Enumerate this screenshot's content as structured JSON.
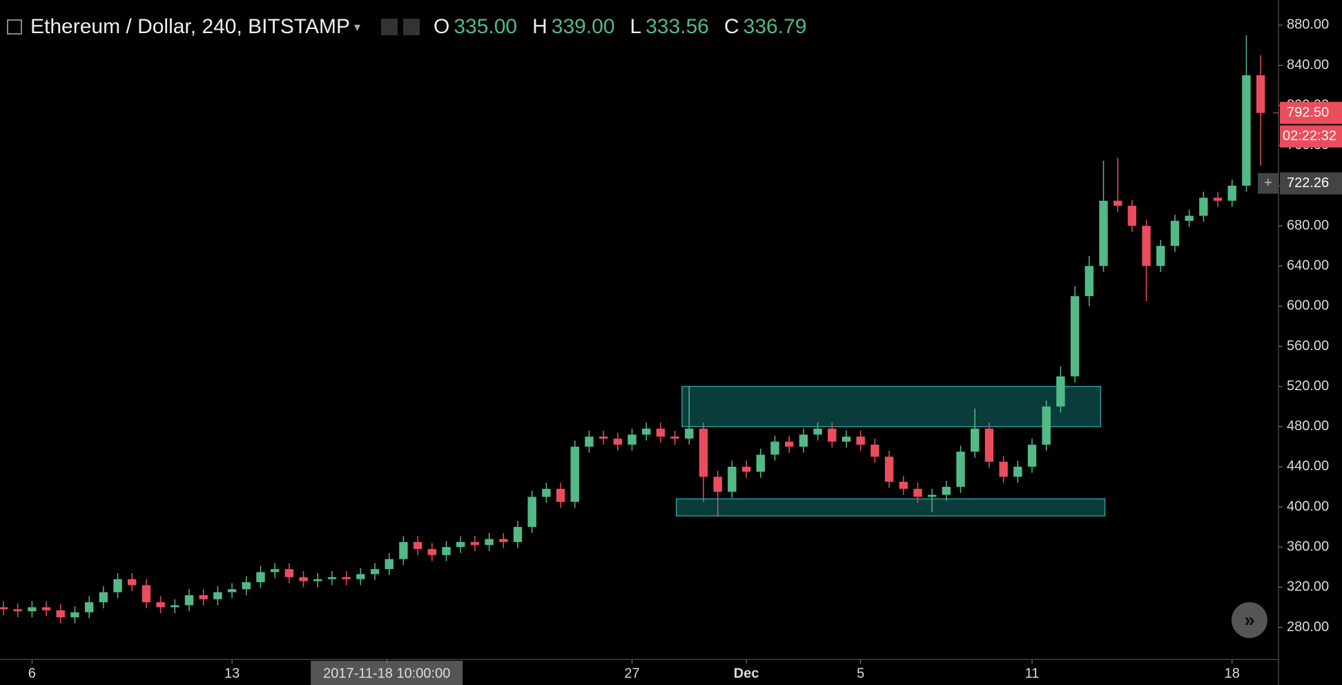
{
  "header": {
    "symbol": "Ethereum / Dollar, 240, BITSTAMP",
    "open_label": "O",
    "open": "335.00",
    "high_label": "H",
    "high": "339.00",
    "low_label": "L",
    "low": "333.56",
    "close_label": "C",
    "close": "336.79"
  },
  "chart_data": {
    "type": "candlestick",
    "x": [
      0,
      1,
      2,
      3,
      4,
      5,
      6,
      7,
      8,
      9,
      10,
      11,
      12,
      13,
      14,
      15,
      16,
      17,
      18,
      19,
      20,
      21,
      22,
      23,
      24,
      25,
      26,
      27,
      28,
      29,
      30,
      31,
      32,
      33,
      34,
      35,
      36,
      37,
      38,
      39,
      40,
      41,
      42,
      43,
      44,
      45,
      46,
      47,
      48,
      49,
      50,
      51,
      52,
      53,
      54,
      55,
      56,
      57,
      58,
      59,
      60,
      61,
      62,
      63,
      64,
      65,
      66,
      67,
      68,
      69,
      70,
      71,
      72,
      73,
      74,
      75,
      76,
      77,
      78,
      79,
      80,
      81,
      82,
      83,
      84,
      85,
      86,
      87,
      88
    ],
    "open": [
      300,
      298,
      296,
      300,
      297,
      290,
      295,
      305,
      315,
      328,
      322,
      305,
      300,
      302,
      312,
      308,
      315,
      318,
      325,
      335,
      338,
      330,
      326,
      328,
      330,
      328,
      333,
      338,
      348,
      365,
      358,
      352,
      360,
      365,
      362,
      368,
      365,
      380,
      410,
      418,
      405,
      460,
      470,
      468,
      462,
      472,
      478,
      470,
      468,
      478,
      430,
      415,
      440,
      435,
      452,
      465,
      460,
      472,
      478,
      465,
      470,
      462,
      450,
      425,
      418,
      410,
      412,
      420,
      455,
      478,
      445,
      430,
      440,
      462,
      500,
      530,
      610,
      640,
      705,
      700,
      680,
      640,
      660,
      685,
      690,
      708,
      705,
      720,
      830
    ],
    "high": [
      306,
      304,
      306,
      306,
      303,
      301,
      311,
      321,
      334,
      334,
      328,
      311,
      308,
      318,
      318,
      321,
      324,
      331,
      341,
      344,
      344,
      336,
      334,
      336,
      336,
      339,
      344,
      354,
      371,
      371,
      364,
      366,
      371,
      371,
      374,
      374,
      386,
      416,
      424,
      424,
      466,
      476,
      476,
      474,
      478,
      484,
      484,
      476,
      520,
      484,
      436,
      446,
      446,
      458,
      471,
      471,
      478,
      484,
      484,
      476,
      476,
      468,
      456,
      431,
      424,
      418,
      426,
      461,
      498,
      484,
      451,
      446,
      468,
      506,
      540,
      620,
      650,
      745,
      748,
      706,
      686,
      666,
      691,
      696,
      714,
      714,
      726,
      870,
      850
    ],
    "low": [
      292,
      290,
      290,
      291,
      284,
      284,
      289,
      299,
      309,
      316,
      299,
      294,
      294,
      296,
      302,
      302,
      309,
      312,
      319,
      329,
      324,
      320,
      320,
      322,
      322,
      322,
      327,
      332,
      342,
      352,
      346,
      346,
      354,
      356,
      356,
      359,
      359,
      374,
      404,
      399,
      399,
      454,
      462,
      456,
      456,
      466,
      464,
      462,
      462,
      405,
      390,
      409,
      429,
      429,
      446,
      454,
      454,
      466,
      459,
      459,
      456,
      444,
      419,
      412,
      404,
      395,
      406,
      414,
      449,
      439,
      424,
      424,
      434,
      456,
      494,
      524,
      600,
      634,
      694,
      674,
      605,
      634,
      654,
      679,
      684,
      699,
      699,
      714,
      740
    ],
    "close": [
      298,
      296,
      300,
      297,
      290,
      295,
      305,
      315,
      328,
      322,
      305,
      300,
      302,
      312,
      308,
      315,
      318,
      325,
      335,
      338,
      330,
      326,
      328,
      330,
      328,
      333,
      338,
      348,
      365,
      358,
      352,
      360,
      365,
      362,
      368,
      365,
      380,
      410,
      418,
      405,
      460,
      470,
      468,
      462,
      472,
      478,
      470,
      468,
      478,
      430,
      415,
      440,
      435,
      452,
      465,
      460,
      472,
      478,
      465,
      470,
      462,
      450,
      425,
      418,
      410,
      412,
      420,
      455,
      478,
      445,
      430,
      440,
      462,
      500,
      530,
      610,
      640,
      705,
      700,
      680,
      640,
      660,
      685,
      690,
      708,
      705,
      720,
      830,
      792.5
    ],
    "up_color": "#53b987",
    "down_color": "#eb4d5c",
    "xlim": [
      -0.24,
      89.25
    ],
    "xticks": [
      {
        "value": 2,
        "label": "6"
      },
      {
        "value": 16,
        "label": "13"
      },
      {
        "value": 26.83,
        "label": "2017-11-18 10:00:00"
      },
      {
        "value": 44,
        "label": "27"
      },
      {
        "value": 52,
        "label": "Dec"
      },
      {
        "value": 60,
        "label": "5"
      },
      {
        "value": 72,
        "label": "11"
      },
      {
        "value": 86,
        "label": "18"
      }
    ],
    "ylim": [
      248,
      905
    ],
    "yticks": [
      {
        "value": 280,
        "label": "280.00"
      },
      {
        "value": 320,
        "label": "320.00"
      },
      {
        "value": 360,
        "label": "360.00"
      },
      {
        "value": 400,
        "label": "400.00"
      },
      {
        "value": 440,
        "label": "440.00"
      },
      {
        "value": 480,
        "label": "480.00"
      },
      {
        "value": 520,
        "label": "520.00"
      },
      {
        "value": 560,
        "label": "560.00"
      },
      {
        "value": 600,
        "label": "600.00"
      },
      {
        "value": 640,
        "label": "640.00"
      },
      {
        "value": 680,
        "label": "680.00"
      },
      {
        "value": 720,
        "label": "720.00"
      },
      {
        "value": 760,
        "label": "760.00"
      },
      {
        "value": 800,
        "label": "800.00"
      },
      {
        "value": 840,
        "label": "840.00"
      },
      {
        "value": 880,
        "label": "880.00"
      }
    ],
    "zones": [
      {
        "x": [
          47.5,
          76.8
        ],
        "y": [
          480,
          520
        ]
      },
      {
        "x": [
          47.1,
          77.1
        ],
        "y": [
          391,
          408
        ]
      }
    ],
    "last_price": {
      "value": 792.5,
      "label": "792.50"
    },
    "countdown": "02:22:32",
    "crosshair": {
      "value": 722.26,
      "label": "722.26"
    }
  }
}
